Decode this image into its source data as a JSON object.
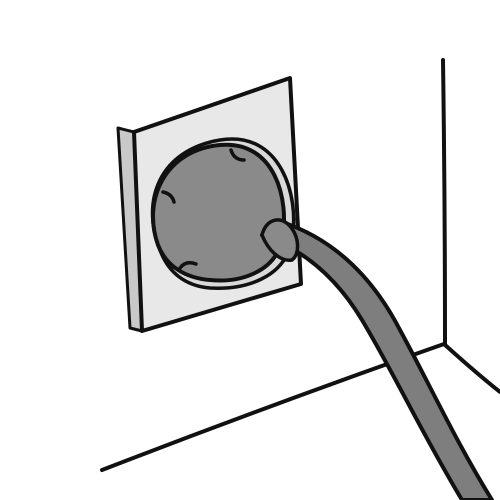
{
  "scene": {
    "subject": "plug-in-wall-socket",
    "style": "grayscale line illustration",
    "colors": {
      "background": "#ffffff",
      "outline": "#111111",
      "socket_plate": "#e8e8e8",
      "socket_side": "#c9c9c9",
      "socket_recess": "#d9d9d9",
      "plug": "#8a8a8a",
      "plug_highlight": "#9a9a9a",
      "cable": "#7e7e7e"
    }
  }
}
